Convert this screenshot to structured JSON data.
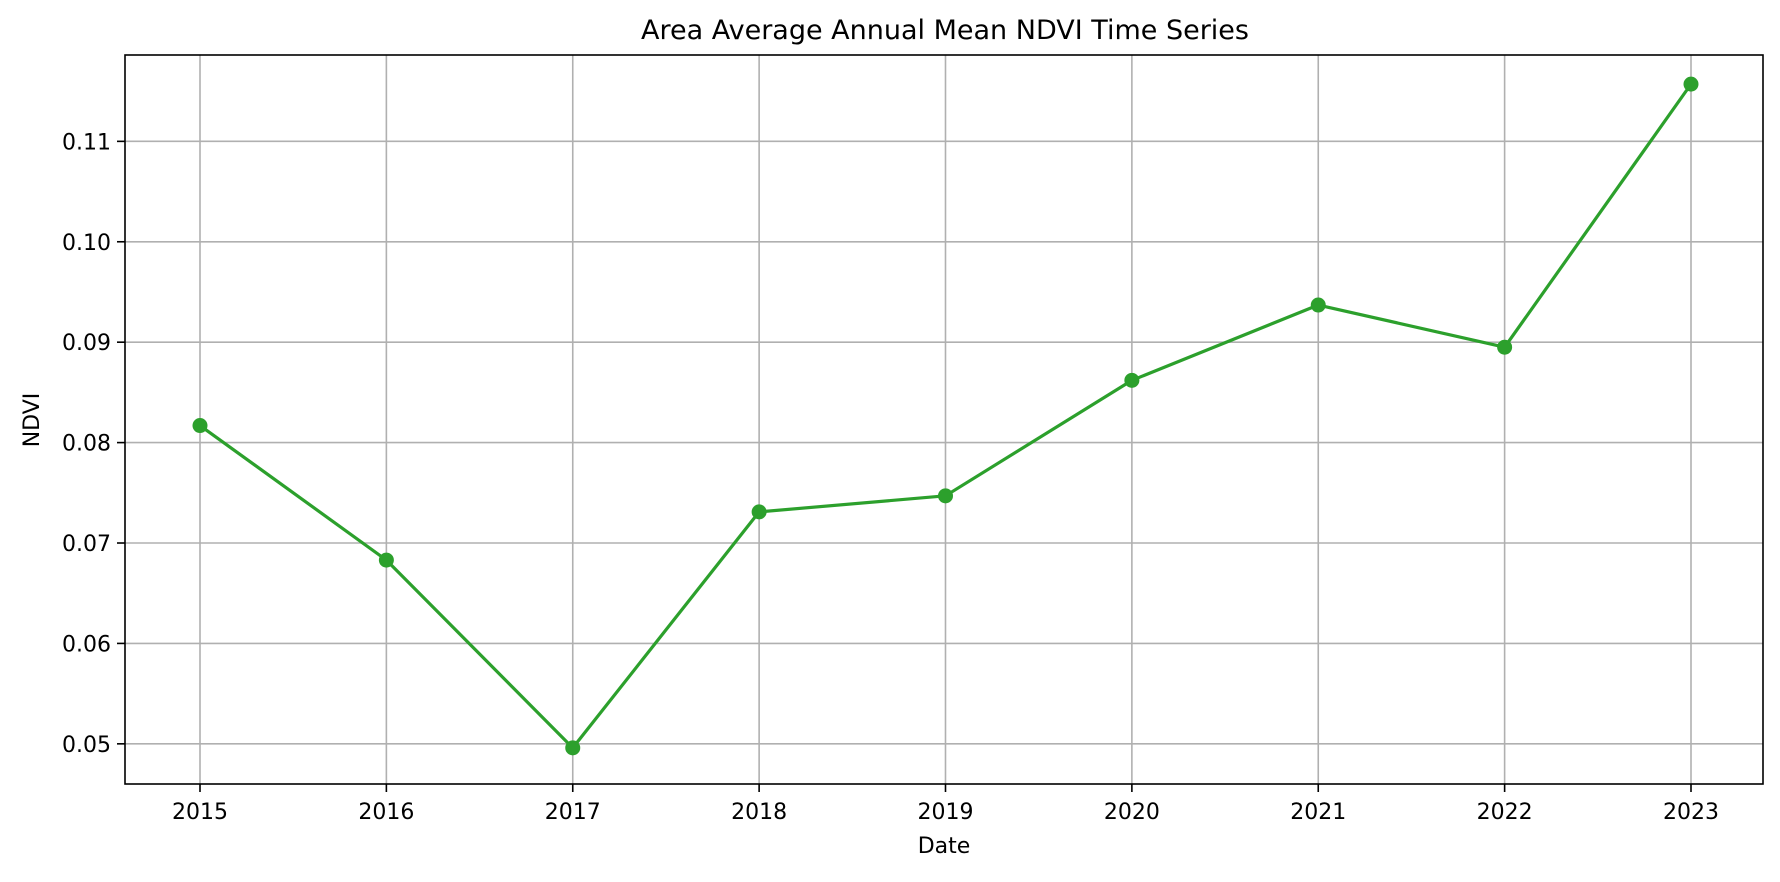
{
  "chart_data": {
    "type": "line",
    "title": "Area Average Annual Mean NDVI Time Series",
    "xlabel": "Date",
    "ylabel": "NDVI",
    "x": [
      "2015",
      "2016",
      "2017",
      "2018",
      "2019",
      "2020",
      "2021",
      "2022",
      "2023"
    ],
    "x_tick_labels": [
      "2015",
      "2016",
      "2017",
      "2018",
      "2019",
      "2020",
      "2021",
      "2022",
      "2023"
    ],
    "y_ticks": [
      0.05,
      0.06,
      0.07,
      0.08,
      0.09,
      0.1,
      0.11
    ],
    "y_tick_labels": [
      "0.05",
      "0.06",
      "0.07",
      "0.08",
      "0.09",
      "0.10",
      "0.11"
    ],
    "ylim": [
      0.046,
      0.1186
    ],
    "series": [
      {
        "values": [
          0.0817,
          0.0683,
          0.0496,
          0.0731,
          0.0747,
          0.0862,
          0.0937,
          0.0895,
          0.1157
        ],
        "color": "#2ca02c",
        "marker": "circle"
      }
    ],
    "grid": true,
    "legend": "none"
  }
}
